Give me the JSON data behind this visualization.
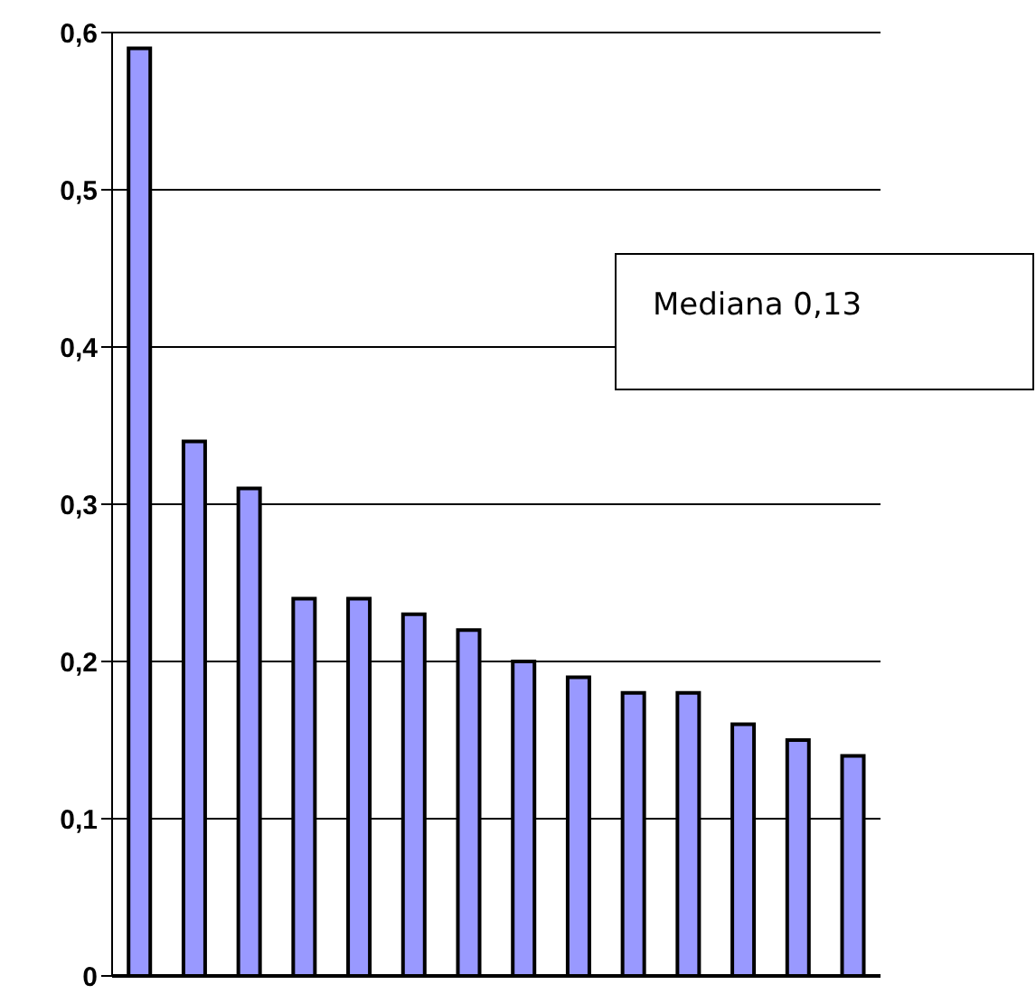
{
  "chart_data": {
    "type": "bar",
    "categories": [
      null,
      null,
      null,
      null,
      null,
      null,
      null,
      null,
      null,
      null,
      null,
      null,
      null,
      null
    ],
    "values": [
      0.59,
      0.34,
      0.31,
      0.24,
      0.24,
      0.23,
      0.22,
      0.2,
      0.19,
      0.18,
      0.18,
      0.16,
      0.15,
      0.14
    ],
    "color": "#9999ff",
    "ylim": [
      0,
      0.6
    ],
    "yticks": [
      0,
      {
        "value": 0.1,
        "label": "0,1"
      },
      {
        "value": 0.2,
        "label": "0,2"
      },
      {
        "value": 0.3,
        "label": "0,3"
      },
      {
        "value": 0.4,
        "label": "0,4"
      },
      {
        "value": 0.5,
        "label": "0,5"
      },
      {
        "value": 0.6,
        "label": "0,6"
      }
    ],
    "grid": "y",
    "tick_labels": "y",
    "annotations": [
      "Mediana 0,13"
    ]
  }
}
